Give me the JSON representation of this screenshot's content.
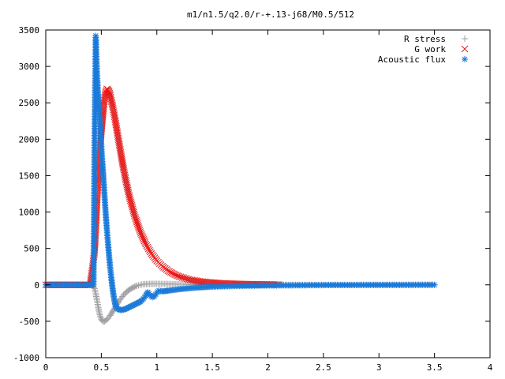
{
  "chart_data": {
    "type": "scatter",
    "title": "m1/n1.5/q2.0/r-+.13-j68/M0.5/512",
    "xlabel": "",
    "ylabel": "",
    "xlim": [
      0,
      4
    ],
    "ylim": [
      -1000,
      3500
    ],
    "x_ticks": [
      "0",
      "0.5",
      "1",
      "1.5",
      "2",
      "2.5",
      "3",
      "3.5",
      "4"
    ],
    "y_ticks": [
      "-1000",
      "-500",
      "0",
      "500",
      "1000",
      "1500",
      "2000",
      "2500",
      "3000",
      "3500"
    ],
    "grid": false,
    "legend_position": "top-right",
    "series": [
      {
        "name": "R stress",
        "marker": "plus",
        "color": "#a0a0a4",
        "points": [
          [
            0,
            0
          ],
          [
            0.2,
            0
          ],
          [
            0.42,
            0
          ],
          [
            0.44,
            -50
          ],
          [
            0.45,
            -120
          ],
          [
            0.46,
            -200
          ],
          [
            0.47,
            -290
          ],
          [
            0.48,
            -370
          ],
          [
            0.49,
            -430
          ],
          [
            0.5,
            -470
          ],
          [
            0.51,
            -495
          ],
          [
            0.52,
            -505
          ],
          [
            0.53,
            -500
          ],
          [
            0.54,
            -490
          ],
          [
            0.56,
            -460
          ],
          [
            0.58,
            -420
          ],
          [
            0.6,
            -370
          ],
          [
            0.62,
            -320
          ],
          [
            0.64,
            -270
          ],
          [
            0.66,
            -220
          ],
          [
            0.68,
            -180
          ],
          [
            0.7,
            -140
          ],
          [
            0.72,
            -110
          ],
          [
            0.74,
            -80
          ],
          [
            0.76,
            -60
          ],
          [
            0.78,
            -40
          ],
          [
            0.8,
            -25
          ],
          [
            0.82,
            -12
          ],
          [
            0.85,
            0
          ],
          [
            0.88,
            8
          ],
          [
            0.92,
            12
          ],
          [
            0.96,
            14
          ],
          [
            1.0,
            14
          ],
          [
            1.1,
            12
          ],
          [
            1.2,
            9
          ],
          [
            1.3,
            6
          ],
          [
            1.4,
            4
          ],
          [
            1.6,
            2
          ],
          [
            1.8,
            1
          ],
          [
            2.0,
            0
          ],
          [
            2.5,
            0
          ],
          [
            3.0,
            0
          ],
          [
            3.5,
            0
          ]
        ]
      },
      {
        "name": "G work",
        "marker": "cross",
        "color": "#e51b1b",
        "points": [
          [
            0,
            0
          ],
          [
            0.2,
            0
          ],
          [
            0.4,
            0
          ],
          [
            0.44,
            460
          ],
          [
            0.45,
            780
          ],
          [
            0.46,
            1100
          ],
          [
            0.47,
            1400
          ],
          [
            0.48,
            1670
          ],
          [
            0.49,
            1900
          ],
          [
            0.5,
            2100
          ],
          [
            0.51,
            2270
          ],
          [
            0.52,
            2420
          ],
          [
            0.53,
            2560
          ],
          [
            0.54,
            2650
          ],
          [
            0.55,
            2690
          ],
          [
            0.56,
            2680
          ],
          [
            0.57,
            2650
          ],
          [
            0.58,
            2600
          ],
          [
            0.6,
            2470
          ],
          [
            0.62,
            2310
          ],
          [
            0.64,
            2130
          ],
          [
            0.66,
            1950
          ],
          [
            0.68,
            1770
          ],
          [
            0.7,
            1600
          ],
          [
            0.72,
            1440
          ],
          [
            0.75,
            1230
          ],
          [
            0.8,
            950
          ],
          [
            0.85,
            730
          ],
          [
            0.9,
            560
          ],
          [
            0.95,
            430
          ],
          [
            1.0,
            330
          ],
          [
            1.05,
            255
          ],
          [
            1.1,
            195
          ],
          [
            1.15,
            150
          ],
          [
            1.2,
            115
          ],
          [
            1.3,
            70
          ],
          [
            1.4,
            45
          ],
          [
            1.5,
            30
          ],
          [
            1.6,
            20
          ],
          [
            1.7,
            14
          ],
          [
            1.8,
            10
          ],
          [
            1.9,
            7
          ],
          [
            2.0,
            5
          ],
          [
            2.1,
            3
          ]
        ]
      },
      {
        "name": "Acoustic flux",
        "marker": "star",
        "color": "#1a7ad9",
        "points": [
          [
            0,
            0
          ],
          [
            0.2,
            0
          ],
          [
            0.43,
            0
          ],
          [
            0.44,
            2030
          ],
          [
            0.45,
            3420
          ],
          [
            0.46,
            2950
          ],
          [
            0.47,
            2640
          ],
          [
            0.48,
            2400
          ],
          [
            0.49,
            2150
          ],
          [
            0.5,
            1900
          ],
          [
            0.51,
            1670
          ],
          [
            0.52,
            1450
          ],
          [
            0.53,
            1200
          ],
          [
            0.54,
            970
          ],
          [
            0.55,
            770
          ],
          [
            0.56,
            580
          ],
          [
            0.57,
            400
          ],
          [
            0.58,
            240
          ],
          [
            0.59,
            100
          ],
          [
            0.6,
            -30
          ],
          [
            0.61,
            -140
          ],
          [
            0.62,
            -230
          ],
          [
            0.63,
            -290
          ],
          [
            0.64,
            -320
          ],
          [
            0.66,
            -340
          ],
          [
            0.68,
            -345
          ],
          [
            0.7,
            -340
          ],
          [
            0.72,
            -330
          ],
          [
            0.74,
            -315
          ],
          [
            0.76,
            -300
          ],
          [
            0.78,
            -285
          ],
          [
            0.8,
            -270
          ],
          [
            0.82,
            -255
          ],
          [
            0.84,
            -240
          ],
          [
            0.86,
            -220
          ],
          [
            0.88,
            -190
          ],
          [
            0.9,
            -150
          ],
          [
            0.92,
            -100
          ],
          [
            0.94,
            -140
          ],
          [
            0.96,
            -170
          ],
          [
            0.98,
            -150
          ],
          [
            1.0,
            -110
          ],
          [
            1.02,
            -80
          ],
          [
            1.05,
            -90
          ],
          [
            1.1,
            -80
          ],
          [
            1.2,
            -60
          ],
          [
            1.3,
            -45
          ],
          [
            1.4,
            -33
          ],
          [
            1.5,
            -25
          ],
          [
            1.7,
            -15
          ],
          [
            2.0,
            -8
          ],
          [
            2.5,
            -3
          ],
          [
            3.0,
            -1
          ],
          [
            3.5,
            0
          ]
        ]
      }
    ]
  }
}
